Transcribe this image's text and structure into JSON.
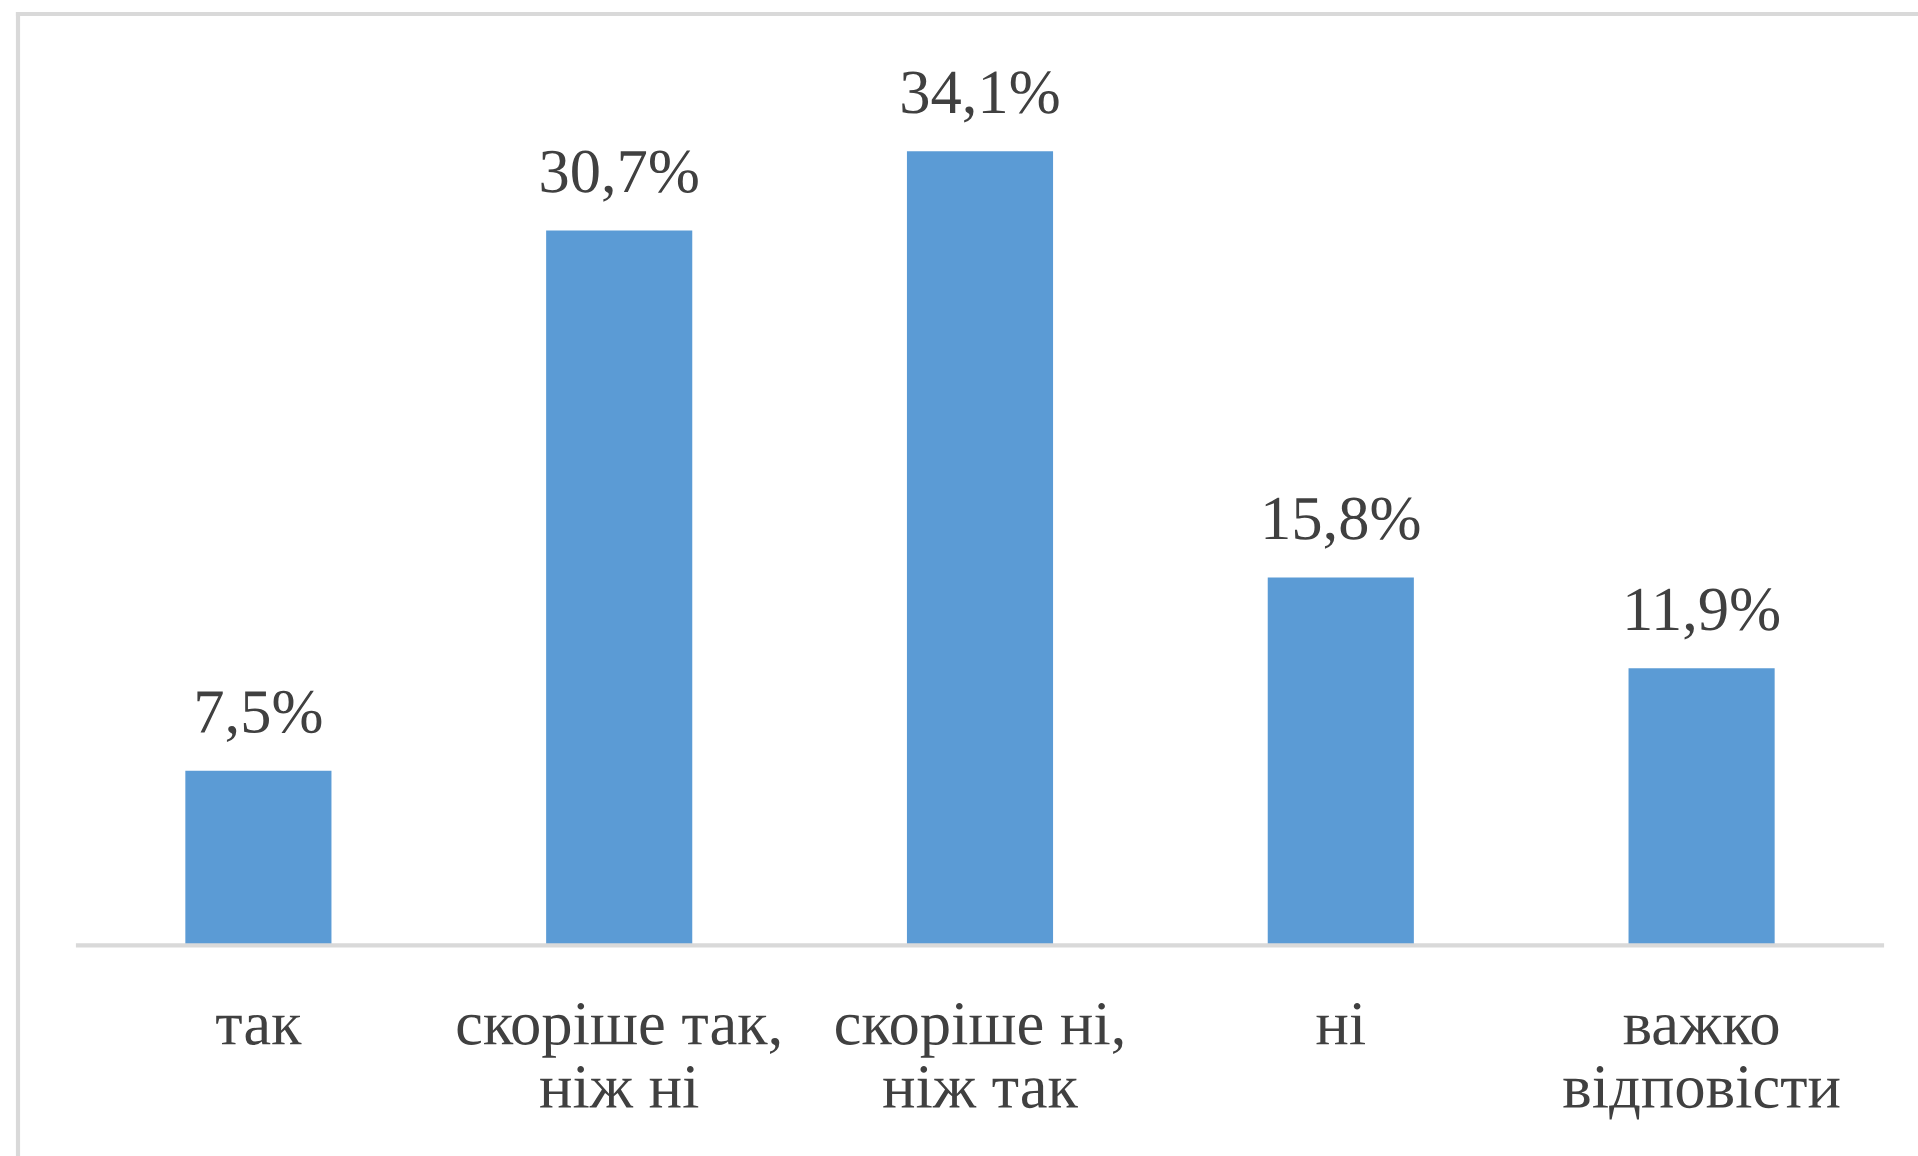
{
  "chart_data": {
    "type": "bar",
    "categories": [
      "так",
      "скоріше так,\nніж ні",
      "скоріше ні,\nніж так",
      "ні",
      "важко\nвідповісти"
    ],
    "values": [
      7.5,
      30.7,
      34.1,
      15.8,
      11.9
    ],
    "value_labels": [
      "7,5%",
      "30,7%",
      "34,1%",
      "15,8%",
      "11,9%"
    ],
    "color": "#5b9bd5",
    "grid": false,
    "legend": false
  }
}
